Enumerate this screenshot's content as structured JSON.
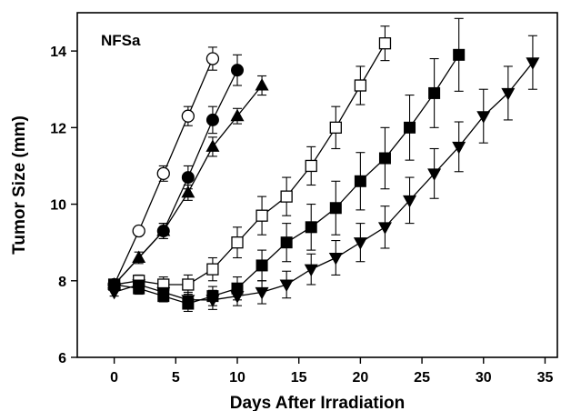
{
  "chart_data": {
    "type": "line",
    "title": "",
    "annotation": "NFSa",
    "xlabel": "Days After Irradiation",
    "ylabel": "Tumor  Size (mm)",
    "xlim": [
      -3,
      36
    ],
    "ylim": [
      6,
      15
    ],
    "xticks": [
      0,
      5,
      10,
      15,
      20,
      25,
      30,
      35
    ],
    "yticks": [
      6,
      8,
      10,
      12,
      14
    ],
    "grid": false,
    "legend": "none",
    "series": [
      {
        "marker": "circle-open",
        "x": [
          0,
          2,
          4,
          6,
          8
        ],
        "y": [
          7.9,
          9.3,
          10.8,
          12.3,
          13.8
        ],
        "err": [
          0.1,
          0.1,
          0.2,
          0.25,
          0.3
        ]
      },
      {
        "marker": "circle-filled",
        "x": [
          0,
          4,
          6,
          8,
          10
        ],
        "y": [
          7.9,
          9.3,
          10.7,
          12.2,
          13.5
        ],
        "err": [
          0.1,
          0.2,
          0.3,
          0.35,
          0.4
        ]
      },
      {
        "marker": "triangle-up-filled",
        "x": [
          0,
          2,
          4,
          6,
          8,
          10,
          12
        ],
        "y": [
          7.9,
          8.6,
          9.3,
          10.3,
          11.5,
          12.3,
          13.1
        ],
        "err": [
          0.1,
          0.15,
          0.2,
          0.2,
          0.25,
          0.2,
          0.25
        ]
      },
      {
        "marker": "square-open",
        "x": [
          0,
          2,
          4,
          6,
          8,
          10,
          12,
          14,
          16,
          18,
          20,
          22
        ],
        "y": [
          7.9,
          8.0,
          7.9,
          7.9,
          8.3,
          9.0,
          9.7,
          10.2,
          11.0,
          12.0,
          13.1,
          14.2
        ],
        "err": [
          0.1,
          0.15,
          0.2,
          0.25,
          0.3,
          0.4,
          0.5,
          0.5,
          0.5,
          0.55,
          0.5,
          0.45
        ]
      },
      {
        "marker": "square-filled",
        "x": [
          0,
          2,
          4,
          6,
          8,
          10,
          12,
          14,
          16,
          18,
          20,
          22,
          24,
          26,
          28
        ],
        "y": [
          7.9,
          7.8,
          7.6,
          7.4,
          7.6,
          7.8,
          8.4,
          9.0,
          9.4,
          9.9,
          10.6,
          11.2,
          12.0,
          12.9,
          13.9
        ],
        "err": [
          0.1,
          0.15,
          0.15,
          0.2,
          0.25,
          0.3,
          0.4,
          0.5,
          0.6,
          0.7,
          0.75,
          0.8,
          0.85,
          0.9,
          0.95
        ]
      },
      {
        "marker": "triangle-down-filled",
        "x": [
          0,
          2,
          4,
          6,
          8,
          10,
          12,
          14,
          16,
          18,
          20,
          22,
          24,
          26,
          28,
          30,
          32,
          34
        ],
        "y": [
          7.7,
          7.9,
          7.7,
          7.5,
          7.5,
          7.6,
          7.7,
          7.9,
          8.3,
          8.6,
          9.0,
          9.4,
          10.1,
          10.8,
          11.5,
          12.3,
          12.9,
          13.7
        ],
        "err": [
          0.1,
          0.15,
          0.15,
          0.2,
          0.25,
          0.25,
          0.3,
          0.35,
          0.4,
          0.45,
          0.5,
          0.55,
          0.6,
          0.65,
          0.65,
          0.7,
          0.7,
          0.7
        ]
      }
    ]
  }
}
